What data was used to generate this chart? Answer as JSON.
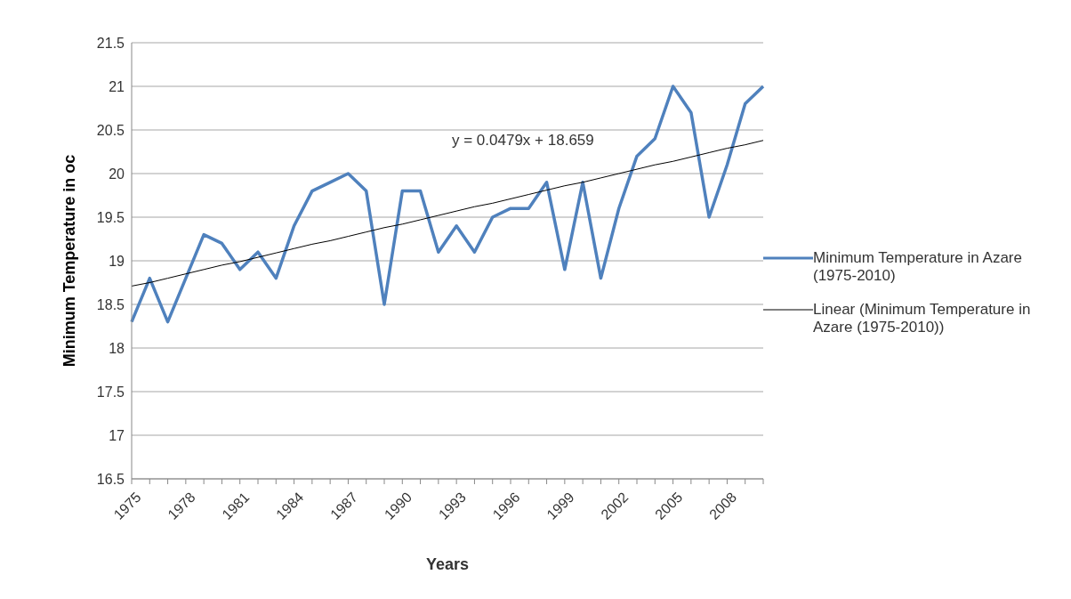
{
  "chart_data": {
    "type": "line",
    "xlabel": "Years",
    "ylabel": "Minimum Temperature in oc",
    "categories": [
      "1975",
      null,
      null,
      "1978",
      null,
      null,
      "1981",
      null,
      null,
      "1984",
      null,
      null,
      "1987",
      null,
      null,
      "1990",
      null,
      null,
      "1993",
      null,
      null,
      "1996",
      null,
      null,
      "1999",
      null,
      null,
      "2002",
      null,
      null,
      "2005",
      null,
      null,
      "2008",
      null,
      null
    ],
    "series": [
      {
        "name": "Minimum Temperature in Azare (1975-2010)",
        "color": "#4f81bd",
        "values": [
          18.3,
          18.8,
          18.3,
          18.8,
          19.3,
          19.2,
          18.9,
          19.1,
          18.8,
          19.4,
          19.8,
          19.9,
          20.0,
          19.8,
          18.5,
          19.8,
          19.8,
          19.1,
          19.4,
          19.1,
          19.5,
          19.6,
          19.6,
          19.9,
          18.9,
          19.9,
          18.8,
          19.6,
          20.2,
          20.4,
          21.0,
          20.7,
          19.5,
          20.1,
          20.8,
          21.0
        ]
      },
      {
        "name": "Linear (Minimum Temperature in Azare (1975-2010))",
        "color": "#000000",
        "values": [
          18.71,
          18.75,
          18.8,
          18.85,
          18.9,
          18.95,
          18.99,
          19.04,
          19.09,
          19.14,
          19.19,
          19.23,
          19.28,
          19.33,
          19.38,
          19.42,
          19.47,
          19.52,
          19.57,
          19.62,
          19.66,
          19.71,
          19.76,
          19.81,
          19.86,
          19.9,
          19.95,
          20.0,
          20.05,
          20.1,
          20.14,
          20.19,
          20.24,
          20.29,
          20.33,
          20.38
        ]
      }
    ],
    "ylim": [
      16.5,
      21.5
    ],
    "yticks": [
      16.5,
      17,
      17.5,
      18,
      18.5,
      19,
      19.5,
      20,
      20.5,
      21,
      21.5
    ],
    "grid": "y",
    "legend": "right",
    "marker": "none",
    "line_style": "solid",
    "annotations": [
      "y = 0.0479x + 18.659"
    ]
  }
}
